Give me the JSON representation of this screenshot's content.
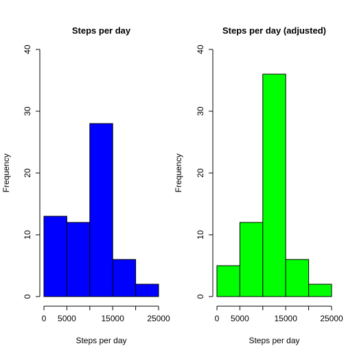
{
  "chart_data": [
    {
      "type": "bar",
      "title": "Steps per day",
      "xlabel": "Steps per day",
      "ylabel": "Frequency",
      "bins": [
        [
          0,
          5000
        ],
        [
          5000,
          10000
        ],
        [
          10000,
          15000
        ],
        [
          15000,
          20000
        ],
        [
          20000,
          25000
        ]
      ],
      "values": [
        13,
        12,
        28,
        6,
        2
      ],
      "xlim": [
        0,
        25000
      ],
      "ylim": [
        0,
        40
      ],
      "xticks": [
        0,
        5000,
        15000,
        25000
      ],
      "yticks": [
        0,
        10,
        20,
        30,
        40
      ],
      "fill_color": "#0000ff",
      "grid": false
    },
    {
      "type": "bar",
      "title": "Steps per day (adjusted)",
      "xlabel": "Steps per day",
      "ylabel": "Frequency",
      "bins": [
        [
          0,
          5000
        ],
        [
          5000,
          10000
        ],
        [
          10000,
          15000
        ],
        [
          15000,
          20000
        ],
        [
          20000,
          25000
        ]
      ],
      "values": [
        5,
        12,
        36,
        6,
        2
      ],
      "xlim": [
        0,
        25000
      ],
      "ylim": [
        0,
        40
      ],
      "xticks": [
        0,
        5000,
        15000,
        25000
      ],
      "yticks": [
        0,
        10,
        20,
        30,
        40
      ],
      "fill_color": "#00ff00",
      "grid": false
    }
  ]
}
